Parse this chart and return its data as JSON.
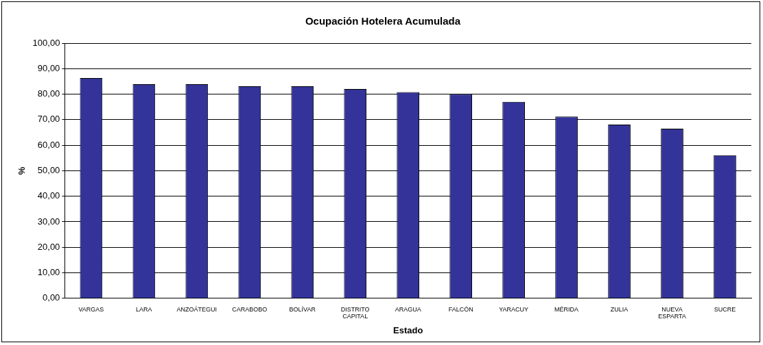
{
  "chart_data": {
    "type": "bar",
    "title": "Ocupación Hotelera Acumulada",
    "xlabel": "Estado",
    "ylabel": "%",
    "categories": [
      "VARGAS",
      "LARA",
      "ANZOÁTEGUI",
      "CARABOBO",
      "BOLÍVAR",
      "DISTRITO CAPITAL",
      "ARAGUA",
      "FALCÓN",
      "YARACUY",
      "MÉRIDA",
      "ZULIA",
      "NUEVA ESPARTA",
      "SUCRE"
    ],
    "values": [
      86.3,
      83.9,
      83.9,
      83.1,
      83.1,
      82.0,
      80.8,
      80.1,
      77.0,
      71.2,
      68.1,
      66.5,
      56.1
    ],
    "color": "#333399",
    "ylim": [
      0,
      100
    ],
    "yticks": [
      {
        "value": 0,
        "label": "0,00"
      },
      {
        "value": 10,
        "label": "10,00"
      },
      {
        "value": 20,
        "label": "20,00"
      },
      {
        "value": 30,
        "label": "30,00"
      },
      {
        "value": 40,
        "label": "40,00"
      },
      {
        "value": 50,
        "label": "50,00"
      },
      {
        "value": 60,
        "label": "60,00"
      },
      {
        "value": 70,
        "label": "70,00"
      },
      {
        "value": 80,
        "label": "80,00"
      },
      {
        "value": 90,
        "label": "90,00"
      },
      {
        "value": 100,
        "label": "100,00"
      }
    ],
    "grid": "y",
    "legend": false
  }
}
